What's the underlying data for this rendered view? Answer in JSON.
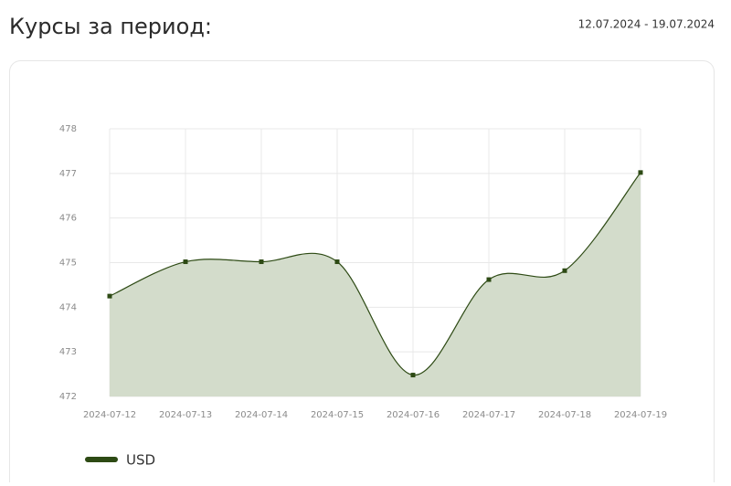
{
  "chart_data": {
    "type": "line",
    "title": "Курсы за период:",
    "subtitle": "12.07.2024 - 19.07.2024",
    "x": [
      "2024-07-12",
      "2024-07-13",
      "2024-07-14",
      "2024-07-15",
      "2024-07-16",
      "2024-07-17",
      "2024-07-18",
      "2024-07-19"
    ],
    "series": [
      {
        "name": "USD",
        "color": "#2d4a14",
        "fill": "#d3dccb",
        "values": [
          474.25,
          475.02,
          475.02,
          475.02,
          472.48,
          474.62,
          474.82,
          477.02
        ]
      }
    ],
    "ylim": [
      472,
      478
    ],
    "yticks": [
      472,
      473,
      474,
      475,
      476,
      477,
      478
    ],
    "grid": true,
    "legend": "bottom-left"
  }
}
